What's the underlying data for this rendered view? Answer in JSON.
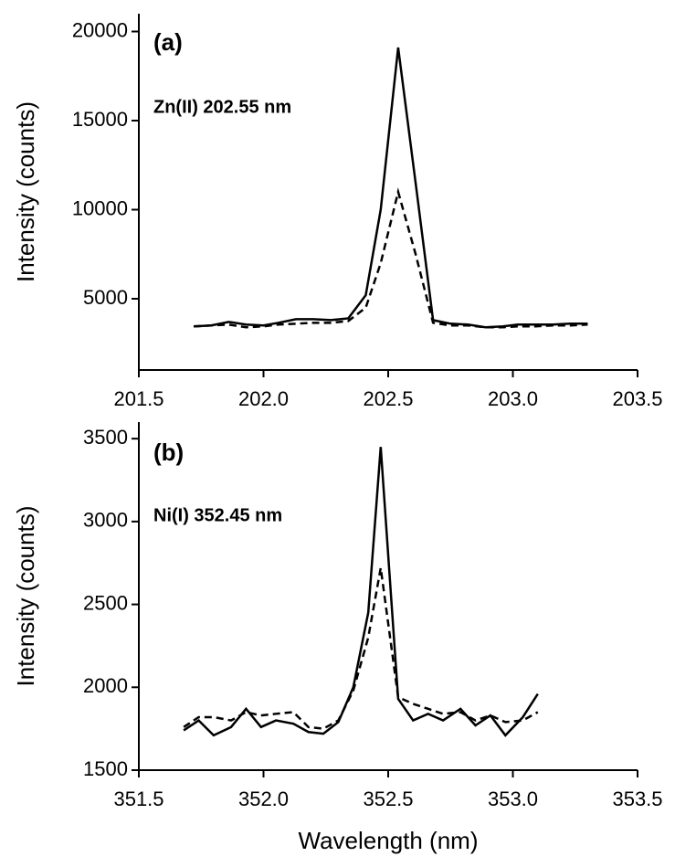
{
  "chart_data": [
    {
      "type": "line",
      "annotations": [
        "(a)",
        "Zn(II) 202.55 nm"
      ],
      "y_label": "Intensity (counts)",
      "x": [
        201.72,
        201.79,
        201.86,
        201.93,
        202.0,
        202.06,
        202.13,
        202.2,
        202.27,
        202.34,
        202.41,
        202.47,
        202.54,
        202.61,
        202.68,
        202.75,
        202.82,
        202.89,
        202.96,
        203.02,
        203.09,
        203.16,
        203.23,
        203.3
      ],
      "series": [
        {
          "color": "#000000",
          "dash": false,
          "values": [
            3450,
            3500,
            3700,
            3550,
            3500,
            3650,
            3850,
            3850,
            3800,
            3900,
            5200,
            10000,
            19100,
            11500,
            3800,
            3600,
            3550,
            3400,
            3450,
            3550,
            3550,
            3550,
            3600,
            3600
          ]
        },
        {
          "color": "#000000",
          "dash": true,
          "values": [
            3450,
            3500,
            3550,
            3400,
            3450,
            3550,
            3600,
            3650,
            3650,
            3750,
            4500,
            7000,
            11000,
            7500,
            3650,
            3500,
            3500,
            3400,
            3400,
            3450,
            3450,
            3500,
            3500,
            3550
          ]
        }
      ],
      "xlim": [
        201.5,
        203.5
      ],
      "xticks": [
        201.5,
        {
          "value": 202,
          "label": "202.0"
        },
        202.5,
        {
          "value": 203,
          "label": "203.0"
        },
        203.5
      ],
      "ylim": [
        1000,
        21000
      ],
      "yticks": [
        5000,
        10000,
        15000,
        20000
      ]
    },
    {
      "type": "line",
      "annotations": [
        "(b)",
        "Ni(I) 352.45 nm"
      ],
      "y_label": "Intensity (counts)",
      "x_label": "Wavelength (nm)",
      "x": [
        351.68,
        351.74,
        351.8,
        351.87,
        351.93,
        351.99,
        352.05,
        352.12,
        352.18,
        352.24,
        352.3,
        352.36,
        352.42,
        352.47,
        352.54,
        352.6,
        352.66,
        352.72,
        352.79,
        352.85,
        352.91,
        352.97,
        353.04,
        353.1
      ],
      "series": [
        {
          "color": "#000000",
          "dash": false,
          "values": [
            1740,
            1800,
            1710,
            1760,
            1870,
            1760,
            1800,
            1780,
            1730,
            1720,
            1790,
            2000,
            2450,
            3450,
            1930,
            1800,
            1840,
            1800,
            1870,
            1770,
            1830,
            1710,
            1820,
            1960
          ]
        },
        {
          "color": "#000000",
          "dash": true,
          "values": [
            1760,
            1820,
            1820,
            1800,
            1850,
            1830,
            1840,
            1850,
            1760,
            1750,
            1800,
            1980,
            2300,
            2720,
            1940,
            1900,
            1870,
            1840,
            1850,
            1800,
            1830,
            1790,
            1800,
            1850
          ]
        }
      ],
      "xlim": [
        351.5,
        353.5
      ],
      "xticks": [
        351.5,
        {
          "value": 352,
          "label": "352.0"
        },
        352.5,
        {
          "value": 353,
          "label": "353.0"
        },
        353.5
      ],
      "ylim": [
        1500,
        3600
      ],
      "yticks": [
        1500,
        2000,
        2500,
        3000,
        3500
      ]
    }
  ]
}
